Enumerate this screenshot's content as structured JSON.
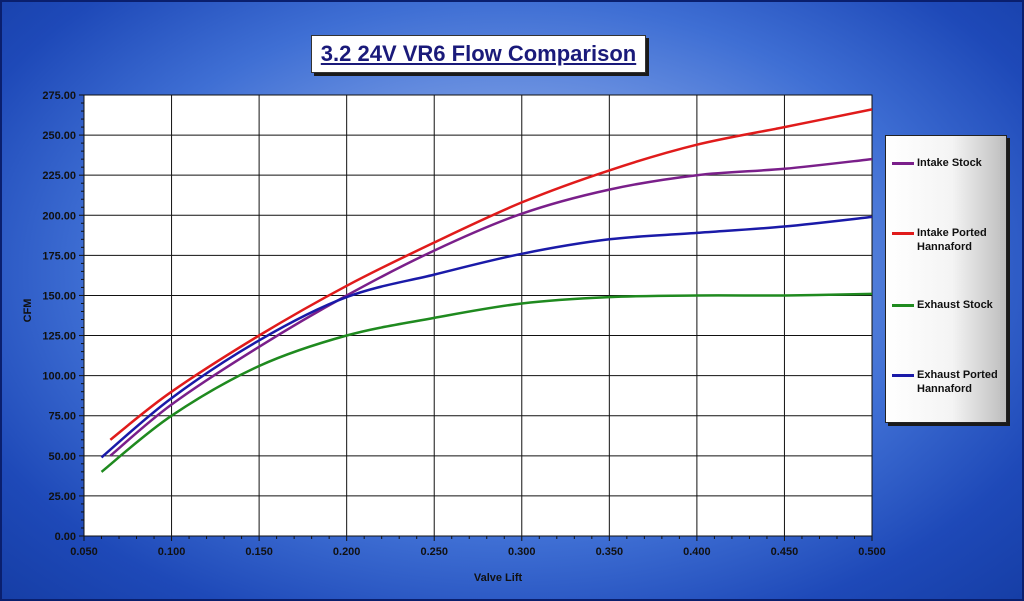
{
  "chart_data": {
    "type": "line",
    "title": "3.2 24V VR6 Flow Comparison",
    "xlabel": "Valve Lift",
    "ylabel": "CFM",
    "xlim": [
      0.05,
      0.5
    ],
    "ylim": [
      0,
      275
    ],
    "xticks": [
      "0.050",
      "0.100",
      "0.150",
      "0.200",
      "0.250",
      "0.300",
      "0.350",
      "0.400",
      "0.450",
      "0.500"
    ],
    "yticks": [
      "0.00",
      "25.00",
      "50.00",
      "75.00",
      "100.00",
      "125.00",
      "150.00",
      "175.00",
      "200.00",
      "225.00",
      "250.00",
      "275.00"
    ],
    "grid": true,
    "legend_position": "right",
    "series": [
      {
        "name": "Intake Stock",
        "color": "#7a1f8a",
        "points": [
          [
            0.065,
            50
          ],
          [
            0.1,
            82
          ],
          [
            0.15,
            118
          ],
          [
            0.2,
            150
          ],
          [
            0.25,
            178
          ],
          [
            0.3,
            201
          ],
          [
            0.35,
            216
          ],
          [
            0.4,
            225
          ],
          [
            0.45,
            229
          ],
          [
            0.5,
            235
          ]
        ]
      },
      {
        "name": "Intake Ported\nHannaford",
        "color": "#e01b1b",
        "points": [
          [
            0.065,
            60
          ],
          [
            0.1,
            90
          ],
          [
            0.15,
            125
          ],
          [
            0.2,
            156
          ],
          [
            0.25,
            183
          ],
          [
            0.3,
            208
          ],
          [
            0.35,
            228
          ],
          [
            0.4,
            244
          ],
          [
            0.45,
            255
          ],
          [
            0.5,
            266
          ]
        ]
      },
      {
        "name": "Exhaust Stock",
        "color": "#1f8a1f",
        "points": [
          [
            0.06,
            40
          ],
          [
            0.1,
            75
          ],
          [
            0.15,
            106
          ],
          [
            0.2,
            125
          ],
          [
            0.25,
            136
          ],
          [
            0.3,
            145
          ],
          [
            0.35,
            149
          ],
          [
            0.4,
            150
          ],
          [
            0.45,
            150
          ],
          [
            0.5,
            151
          ]
        ]
      },
      {
        "name": "Exhaust Ported\nHannaford",
        "color": "#1a1aa8",
        "points": [
          [
            0.06,
            49
          ],
          [
            0.1,
            86
          ],
          [
            0.15,
            122
          ],
          [
            0.2,
            149
          ],
          [
            0.25,
            163
          ],
          [
            0.3,
            176
          ],
          [
            0.35,
            185
          ],
          [
            0.4,
            189
          ],
          [
            0.45,
            193
          ],
          [
            0.5,
            199
          ]
        ]
      }
    ]
  }
}
